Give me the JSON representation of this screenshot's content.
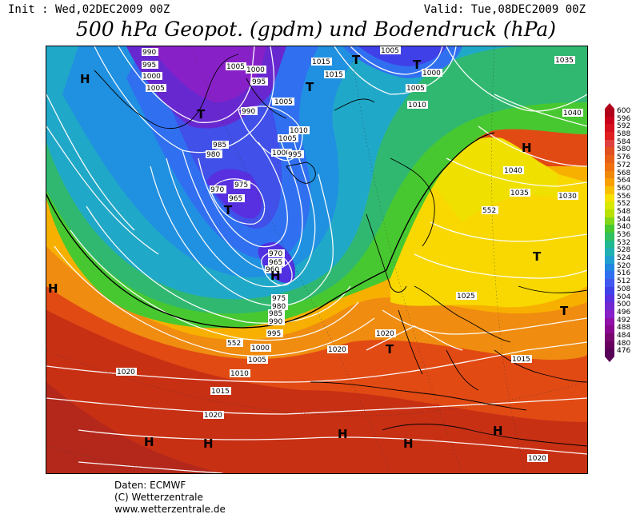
{
  "header": {
    "init": "Init : Wed,02DEC2009 00Z",
    "valid": "Valid: Tue,08DEC2009 00Z",
    "title": "500 hPa Geopot. (gpdm) und Bodendruck (hPa)"
  },
  "legend": {
    "values": [
      "600",
      "596",
      "592",
      "588",
      "584",
      "580",
      "576",
      "572",
      "568",
      "564",
      "560",
      "556",
      "552",
      "548",
      "544",
      "540",
      "536",
      "532",
      "528",
      "524",
      "520",
      "516",
      "512",
      "508",
      "504",
      "500",
      "496",
      "492",
      "488",
      "484",
      "480",
      "476"
    ],
    "colors": [
      "#b0001a",
      "#c8001a",
      "#d6101e",
      "#e02020",
      "#e04040",
      "#e05020",
      "#e86018",
      "#f07010",
      "#f08808",
      "#f8a000",
      "#f8c000",
      "#f8e000",
      "#d8e800",
      "#b8e000",
      "#80d818",
      "#48c830",
      "#30c060",
      "#20b890",
      "#20b0b0",
      "#20a0d0",
      "#2088e0",
      "#3070f0",
      "#4058f0",
      "#4040e8",
      "#5830e0",
      "#7028d0",
      "#8820c8",
      "#9010a8",
      "#880890",
      "#780870",
      "#680060",
      "#580058"
    ]
  },
  "map": {
    "pressure_labels": [
      "990",
      "995",
      "1000",
      "1005",
      "1005",
      "995",
      "1005",
      "1000",
      "1015",
      "1015",
      "1005",
      "1000",
      "1005",
      "1035",
      "1040",
      "1010",
      "990",
      "1005",
      "1010",
      "1005",
      "1000",
      "995",
      "1040",
      "980",
      "985",
      "975",
      "970",
      "965",
      "1035",
      "1030",
      "552",
      "970",
      "965",
      "960",
      "1025",
      "975",
      "980",
      "985",
      "990",
      "995",
      "1020",
      "552",
      "1000",
      "1005",
      "1010",
      "1020",
      "1015",
      "1015",
      "1020",
      "1020",
      "1020"
    ],
    "centers": [
      "H",
      "T",
      "T",
      "T",
      "T",
      "H",
      "H",
      "T",
      "T",
      "T",
      "T",
      "H",
      "H",
      "H",
      "H",
      "H",
      "H"
    ]
  },
  "credits": {
    "line1": "Daten: ECMWF",
    "line2": "(C) Wetterzentrale",
    "line3": "www.wetterzentrale.de"
  }
}
